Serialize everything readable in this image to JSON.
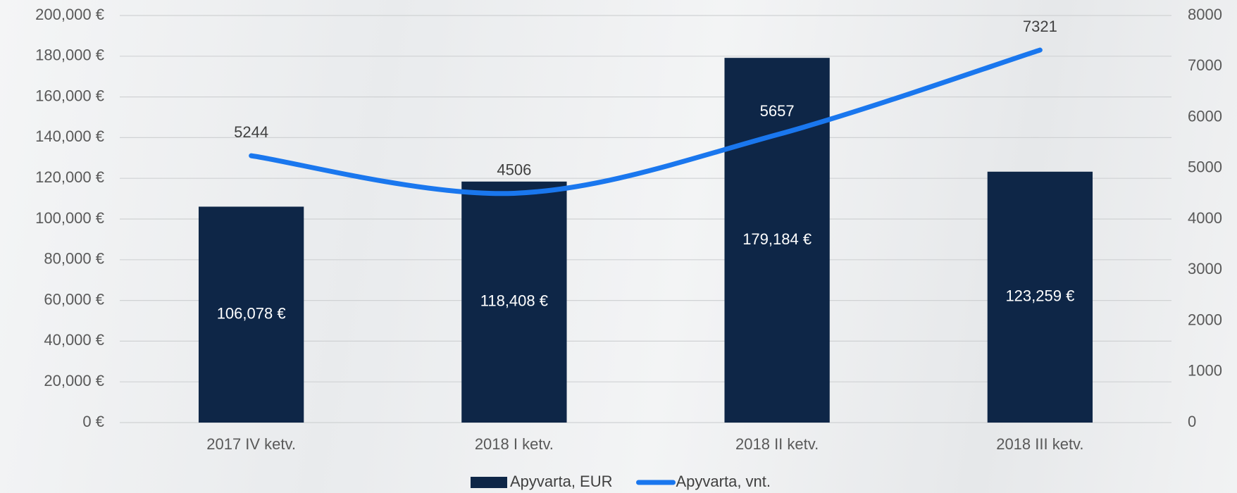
{
  "chart_data": {
    "type": "combo",
    "categories": [
      "2017 IV ketv.",
      "2018 I ketv.",
      "2018 II ketv.",
      "2018 III ketv."
    ],
    "series": [
      {
        "name": "Apyvarta, EUR",
        "type": "bar",
        "color": "#0e2647",
        "values": [
          106078,
          118408,
          179184,
          123259
        ],
        "value_labels": [
          "106,078 €",
          "118,408 €",
          "179,184 €",
          "123,259 €"
        ]
      },
      {
        "name": "Apyvarta, vnt.",
        "type": "line",
        "axis": "y2",
        "color": "#1a77ee",
        "values": [
          5244,
          4506,
          5657,
          7321
        ]
      }
    ],
    "ylim": [
      0,
      200000
    ],
    "yticks": [
      {
        "value": 0,
        "label": "0 €"
      },
      {
        "value": 20000,
        "label": "20,000 €"
      },
      {
        "value": 40000,
        "label": "40,000 €"
      },
      {
        "value": 60000,
        "label": "60,000 €"
      },
      {
        "value": 80000,
        "label": "80,000 €"
      },
      {
        "value": 100000,
        "label": "100,000 €"
      },
      {
        "value": 120000,
        "label": "120,000 €"
      },
      {
        "value": 140000,
        "label": "140,000 €"
      },
      {
        "value": 160000,
        "label": "160,000 €"
      },
      {
        "value": 180000,
        "label": "180,000 €"
      },
      {
        "value": 200000,
        "label": "200,000 €"
      }
    ],
    "y2lim": [
      0,
      8000
    ],
    "y2ticks": [
      0,
      1000,
      2000,
      3000,
      4000,
      5000,
      6000,
      7000,
      8000
    ],
    "grid": true,
    "legend": "bottom"
  }
}
